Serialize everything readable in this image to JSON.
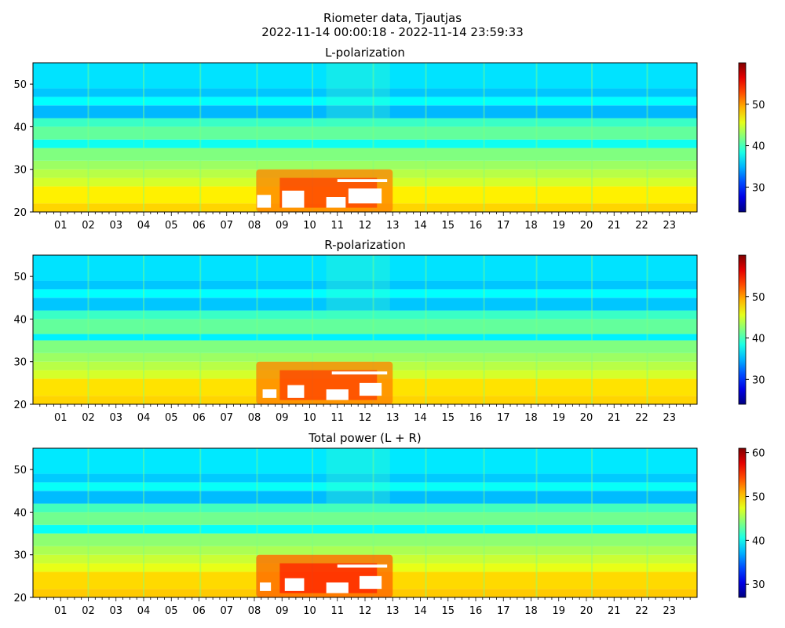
{
  "figure": {
    "title_line1": "Riometer data, Tjautjas",
    "title_line2": "2022-11-14 00:00:18 - 2022-11-14 23:59:33"
  },
  "chart_data": [
    {
      "type": "heatmap",
      "title": "L-polarization",
      "xlabel": "",
      "ylabel": "",
      "x_range_hours": [
        0,
        24
      ],
      "x_tick_labels": [
        "01",
        "02",
        "03",
        "04",
        "05",
        "06",
        "07",
        "08",
        "09",
        "10",
        "11",
        "12",
        "13",
        "14",
        "15",
        "16",
        "17",
        "18",
        "19",
        "20",
        "21",
        "22",
        "23"
      ],
      "ylim": [
        20,
        55
      ],
      "y_ticks": [
        20,
        30,
        40,
        50
      ],
      "colorbar": {
        "colormap": "jet",
        "range": [
          24,
          60
        ],
        "ticks": [
          30,
          40,
          50
        ]
      },
      "bands": [
        {
          "y": [
            20,
            22
          ],
          "value": 48
        },
        {
          "y": [
            22,
            26
          ],
          "value": 47
        },
        {
          "y": [
            26,
            28
          ],
          "value": 45
        },
        {
          "y": [
            28,
            30
          ],
          "value": 44
        },
        {
          "y": [
            30,
            32
          ],
          "value": 43
        },
        {
          "y": [
            32,
            35
          ],
          "value": 42
        },
        {
          "y": [
            35,
            37
          ],
          "value": 38
        },
        {
          "y": [
            37,
            40
          ],
          "value": 41
        },
        {
          "y": [
            40,
            42
          ],
          "value": 39.5
        },
        {
          "y": [
            42,
            45
          ],
          "value": 35
        },
        {
          "y": [
            45,
            47
          ],
          "value": 37.5
        },
        {
          "y": [
            47,
            49
          ],
          "value": 35.5
        },
        {
          "y": [
            49,
            55
          ],
          "value": 36.5
        }
      ],
      "enhancement": {
        "hours": [
          7.5,
          13
        ],
        "y": [
          20,
          30
        ],
        "value": 51
      },
      "saturated_patches": [
        {
          "hours": [
            8.1,
            8.6
          ],
          "y": [
            21,
            24
          ]
        },
        {
          "hours": [
            9.0,
            9.8
          ],
          "y": [
            21,
            25
          ]
        },
        {
          "hours": [
            10.6,
            11.3
          ],
          "y": [
            21,
            23.5
          ]
        },
        {
          "hours": [
            11.4,
            12.6
          ],
          "y": [
            22,
            25.5
          ]
        },
        {
          "hours": [
            11.0,
            12.8
          ],
          "y": [
            27,
            27.7
          ]
        }
      ],
      "vertical_streaks_hours": [
        2.0,
        4.0,
        6.05,
        8.1,
        10.1,
        12.3,
        14.2,
        16.3,
        18.2,
        20.2,
        22.2
      ]
    },
    {
      "type": "heatmap",
      "title": "R-polarization",
      "xlabel": "",
      "ylabel": "",
      "x_range_hours": [
        0,
        24
      ],
      "x_tick_labels": [
        "01",
        "02",
        "03",
        "04",
        "05",
        "06",
        "07",
        "08",
        "09",
        "10",
        "11",
        "12",
        "13",
        "14",
        "15",
        "16",
        "17",
        "18",
        "19",
        "20",
        "21",
        "22",
        "23"
      ],
      "ylim": [
        20,
        55
      ],
      "y_ticks": [
        20,
        30,
        40,
        50
      ],
      "colorbar": {
        "colormap": "jet",
        "range": [
          24,
          60
        ],
        "ticks": [
          30,
          40,
          50
        ]
      },
      "bands": [
        {
          "y": [
            20,
            22
          ],
          "value": 48
        },
        {
          "y": [
            22,
            26
          ],
          "value": 47.5
        },
        {
          "y": [
            26,
            28
          ],
          "value": 45
        },
        {
          "y": [
            28,
            30
          ],
          "value": 44
        },
        {
          "y": [
            30,
            32
          ],
          "value": 43
        },
        {
          "y": [
            32,
            35
          ],
          "value": 42
        },
        {
          "y": [
            35,
            36.5
          ],
          "value": 37
        },
        {
          "y": [
            36.5,
            40
          ],
          "value": 41
        },
        {
          "y": [
            40,
            42
          ],
          "value": 39.5
        },
        {
          "y": [
            42,
            45
          ],
          "value": 35.5
        },
        {
          "y": [
            45,
            47
          ],
          "value": 37.5
        },
        {
          "y": [
            47,
            49
          ],
          "value": 35.5
        },
        {
          "y": [
            49,
            55
          ],
          "value": 36.5
        }
      ],
      "enhancement": {
        "hours": [
          7.5,
          13
        ],
        "y": [
          20,
          30
        ],
        "value": 51
      },
      "saturated_patches": [
        {
          "hours": [
            8.3,
            8.8
          ],
          "y": [
            21.5,
            23.5
          ]
        },
        {
          "hours": [
            9.2,
            9.8
          ],
          "y": [
            21.5,
            24.5
          ]
        },
        {
          "hours": [
            10.6,
            11.4
          ],
          "y": [
            21,
            23.5
          ]
        },
        {
          "hours": [
            11.8,
            12.6
          ],
          "y": [
            22,
            25
          ]
        },
        {
          "hours": [
            10.8,
            12.8
          ],
          "y": [
            27,
            27.7
          ]
        }
      ],
      "vertical_streaks_hours": [
        2.0,
        4.0,
        6.05,
        8.1,
        10.1,
        12.3,
        14.2,
        16.3,
        18.2,
        20.2,
        22.2
      ]
    },
    {
      "type": "heatmap",
      "title": "Total power (L + R)",
      "xlabel": "",
      "ylabel": "",
      "x_range_hours": [
        0,
        24
      ],
      "x_tick_labels": [
        "01",
        "02",
        "03",
        "04",
        "05",
        "06",
        "07",
        "08",
        "09",
        "10",
        "11",
        "12",
        "13",
        "14",
        "15",
        "16",
        "17",
        "18",
        "19",
        "20",
        "21",
        "22",
        "23"
      ],
      "ylim": [
        20,
        55
      ],
      "y_ticks": [
        20,
        30,
        40,
        50
      ],
      "colorbar": {
        "colormap": "jet",
        "range": [
          27,
          61
        ],
        "ticks": [
          30,
          40,
          50,
          60
        ]
      },
      "bands": [
        {
          "y": [
            20,
            22
          ],
          "value": 50
        },
        {
          "y": [
            22,
            26
          ],
          "value": 49.5
        },
        {
          "y": [
            26,
            28
          ],
          "value": 47.5
        },
        {
          "y": [
            28,
            30
          ],
          "value": 46.5
        },
        {
          "y": [
            30,
            32
          ],
          "value": 45.5
        },
        {
          "y": [
            32,
            35
          ],
          "value": 44.5
        },
        {
          "y": [
            35,
            37
          ],
          "value": 40
        },
        {
          "y": [
            37,
            40
          ],
          "value": 43.5
        },
        {
          "y": [
            40,
            42
          ],
          "value": 42
        },
        {
          "y": [
            42,
            45
          ],
          "value": 37.5
        },
        {
          "y": [
            45,
            47
          ],
          "value": 40
        },
        {
          "y": [
            47,
            49
          ],
          "value": 38
        },
        {
          "y": [
            49,
            55
          ],
          "value": 39
        }
      ],
      "enhancement": {
        "hours": [
          7.5,
          13
        ],
        "y": [
          20,
          30
        ],
        "value": 53.5
      },
      "saturated_patches": [
        {
          "hours": [
            8.2,
            8.6
          ],
          "y": [
            21.5,
            23.5
          ]
        },
        {
          "hours": [
            9.1,
            9.8
          ],
          "y": [
            21.5,
            24.5
          ]
        },
        {
          "hours": [
            10.6,
            11.4
          ],
          "y": [
            21,
            23.5
          ]
        },
        {
          "hours": [
            11.8,
            12.6
          ],
          "y": [
            22,
            25
          ]
        },
        {
          "hours": [
            11.0,
            12.8
          ],
          "y": [
            27,
            27.7
          ]
        }
      ],
      "vertical_streaks_hours": [
        2.0,
        4.0,
        6.05,
        8.1,
        10.1,
        12.3,
        14.2,
        16.3,
        18.2,
        20.2,
        22.2
      ]
    }
  ]
}
